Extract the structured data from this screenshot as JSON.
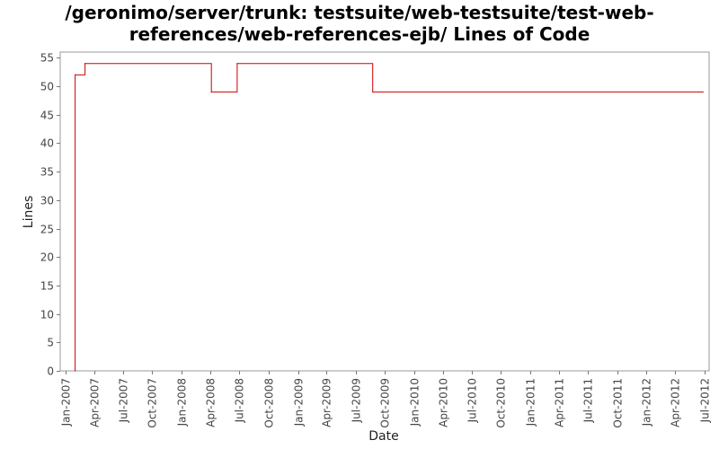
{
  "chart_data": {
    "type": "line",
    "title": "/geronimo/server/trunk: testsuite/web-testsuite/test-web-references/web-references-ejb/ Lines of Code",
    "xlabel": "Date",
    "ylabel": "Lines",
    "ylim": [
      0,
      56
    ],
    "xlim": [
      "2006-12-16",
      "2012-07-16"
    ],
    "y_ticks": [
      0,
      5,
      10,
      15,
      20,
      25,
      30,
      35,
      40,
      45,
      50,
      55
    ],
    "x_ticks": [
      "Jan-2007",
      "Apr-2007",
      "Jul-2007",
      "Oct-2007",
      "Jan-2008",
      "Apr-2008",
      "Jul-2008",
      "Oct-2008",
      "Jan-2009",
      "Apr-2009",
      "Jul-2009",
      "Oct-2009",
      "Jan-2010",
      "Apr-2010",
      "Jul-2010",
      "Oct-2010",
      "Jan-2011",
      "Apr-2011",
      "Jul-2011",
      "Oct-2011",
      "Jan-2012",
      "Apr-2012",
      "Jul-2012"
    ],
    "grid": false,
    "legend": "none",
    "line_style": "step",
    "series": [
      {
        "color": "#cc0000",
        "points": [
          {
            "x": "2007-02-01",
            "y": 0
          },
          {
            "x": "2007-02-01",
            "y": 52
          },
          {
            "x": "2007-03-04",
            "y": 54
          },
          {
            "x": "2008-04-04",
            "y": 49
          },
          {
            "x": "2008-06-24",
            "y": 54
          },
          {
            "x": "2009-08-24",
            "y": 49
          },
          {
            "x": "2012-06-27",
            "y": 49
          }
        ]
      }
    ]
  }
}
